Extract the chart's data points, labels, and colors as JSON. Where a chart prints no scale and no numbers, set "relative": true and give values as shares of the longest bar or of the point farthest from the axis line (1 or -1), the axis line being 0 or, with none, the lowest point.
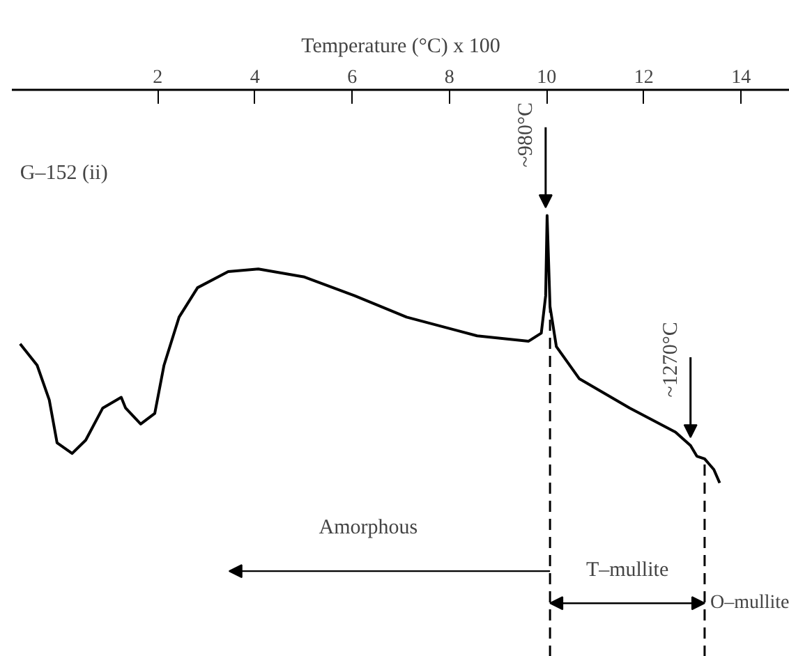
{
  "chart_data": {
    "type": "line",
    "xlabel": "Temperature (°C) x 100",
    "xlim": [
      -1,
      15
    ],
    "xticks": [
      2,
      4,
      6,
      8,
      10,
      12,
      14
    ],
    "tick_labels": "x",
    "relative": true,
    "grid": false,
    "line_style": "solid",
    "series": [
      {
        "name": "G–152 (ii)",
        "color": "#000000",
        "x": [
          -0.83,
          -0.48,
          -0.23,
          -0.07,
          0.24,
          0.52,
          0.87,
          1.25,
          1.34,
          1.65,
          1.94,
          2.13,
          2.44,
          2.82,
          3.45,
          4.07,
          5.02,
          6.05,
          7.12,
          8.16,
          8.57,
          9.63,
          9.89,
          9.98,
          10.01,
          10.07,
          10.2,
          10.67,
          11.71,
          12.65,
          12.96,
          13.09,
          13.25,
          13.44,
          13.56
        ],
        "values": [
          0.52,
          0.44,
          0.31,
          0.15,
          0.11,
          0.16,
          0.28,
          0.32,
          0.28,
          0.22,
          0.26,
          0.44,
          0.62,
          0.73,
          0.79,
          0.8,
          0.77,
          0.7,
          0.62,
          0.57,
          0.55,
          0.53,
          0.56,
          0.7,
          1.0,
          0.66,
          0.51,
          0.39,
          0.28,
          0.19,
          0.14,
          0.1,
          0.09,
          0.05,
          0.0
        ]
      }
    ],
    "ref_lines": [
      {
        "axis": "x",
        "value": 10.07,
        "line_style": "dashed"
      },
      {
        "axis": "x",
        "value": 13.25,
        "line_style": "dashed"
      }
    ],
    "annotations": [
      {
        "text": "~980°C",
        "x": 9.98,
        "y": 1.0
      },
      {
        "text": "~1270°C",
        "x": 12.96,
        "y": 0.14
      },
      "Amorphous",
      "T–mullite",
      "O–mullite"
    ]
  }
}
